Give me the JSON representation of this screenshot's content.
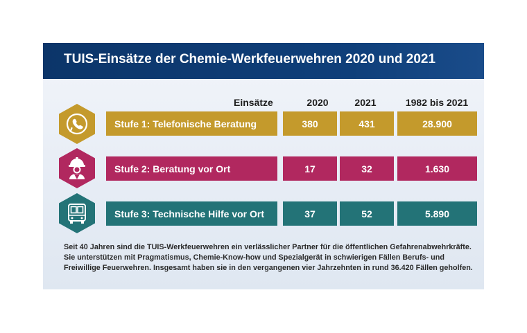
{
  "title": "TUIS-Einsätze der Chemie-Werkfeuerwehren 2020 und 2021",
  "colors": {
    "title_bar": "#0f3c75",
    "stage1": "#c49a2c",
    "stage2": "#b1285f",
    "stage3": "#237377"
  },
  "chart_data": {
    "type": "table",
    "columns": [
      "Einsätze",
      "2020",
      "2021",
      "1982 bis 2021"
    ],
    "rows": [
      {
        "label": "Stufe 1: Telefonische Beratung",
        "icon": "phone-icon",
        "values": [
          "380",
          "431",
          "28.900"
        ]
      },
      {
        "label": "Stufe 2: Beratung vor Ort",
        "icon": "firefighter-icon",
        "values": [
          "17",
          "32",
          "1.630"
        ]
      },
      {
        "label": "Stufe 3: Technische Hilfe vor Ort",
        "icon": "truck-icon",
        "values": [
          "37",
          "52",
          "5.890"
        ]
      }
    ]
  },
  "footer": {
    "lines": [
      "Seit 40 Jahren sind die TUIS-Werkfeuerwehren ein verlässlicher Partner für die öffentlichen Gefahrenabwehrkräfte.",
      "Sie unterstützen mit Pragmatismus, Chemie-Know-how und Spezialgerät in schwierigen Fällen Berufs- und",
      "Freiwillige Feuerwehren. Insgesamt haben sie in den vergangenen vier Jahrzehnten in rund 36.420 Fällen geholfen."
    ]
  }
}
